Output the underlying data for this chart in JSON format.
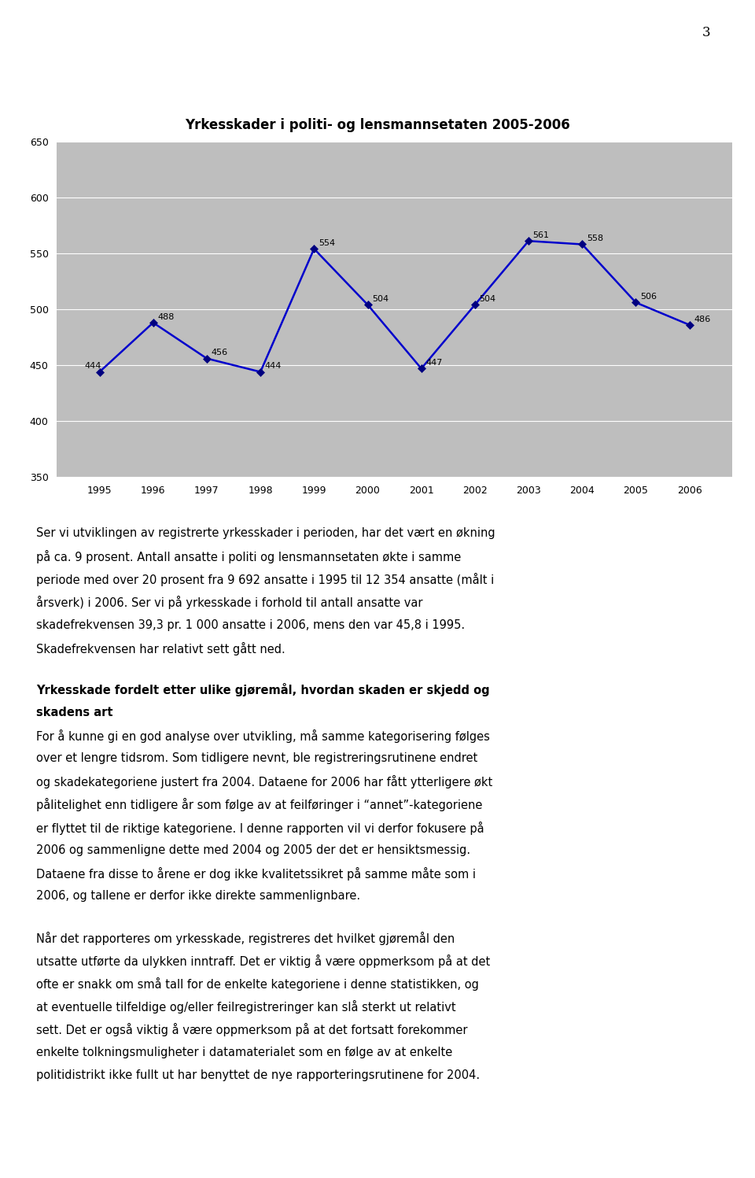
{
  "title": "Yrkesskader i politi- og lensmannsetaten 2005-2006",
  "years": [
    1995,
    1996,
    1997,
    1998,
    1999,
    2000,
    2001,
    2002,
    2003,
    2004,
    2005,
    2006
  ],
  "values": [
    444,
    488,
    456,
    444,
    554,
    504,
    447,
    504,
    561,
    558,
    506,
    486
  ],
  "ylim": [
    350,
    650
  ],
  "yticks": [
    350,
    400,
    450,
    500,
    550,
    600,
    650
  ],
  "line_color": "#0000CC",
  "marker_color": "#000080",
  "chart_bg": "#BEBEBE",
  "page_bg": "#FFFFFF",
  "page_number": "3",
  "p1_line1": "Ser vi utviklingen av registrerte yrkesskader i perioden, har det vært en økning",
  "p1_line2": "på ca. 9 prosent. Antall ansatte i politi og lensmannsetaten økte i samme",
  "p1_line3": "periode med over 20 prosent fra 9 692 ansatte i 1995 til 12 354 ansatte (målt i",
  "p1_line4": "årsverk) i 2006. Ser vi på yrkesskade i forhold til antall ansatte var",
  "p1_line5": "skadefrekvensen 39,3 pr. 1 000 ansatte i 2006, mens den var 45,8 i 1995.",
  "p1_line6": "Skadefrekvensen har relativt sett gått ned.",
  "h2_line1": "Yrkesskade fordelt etter ulike gjøremål, hvordan skaden er skjedd og",
  "h2_line2": "skadens art",
  "p2_line1": "For å kunne gi en god analyse over utvikling, må samme kategorisering følges",
  "p2_line2": "over et lengre tidsrom. Som tidligere nevnt, ble registreringsrutinene endret",
  "p2_line3": "og skadekategoriene justert fra 2004. Dataene for 2006 har fått ytterligere økt",
  "p2_line4": "pålitelighet enn tidligere år som følge av at feilføringer i “annet”-kategoriene",
  "p2_line5": "er flyttet til de riktige kategoriene. I denne rapporten vil vi derfor fokusere på",
  "p2_line6": "2006 og sammenligne dette med 2004 og 2005 der det er hensiktsmessig.",
  "p2_line7": "Dataene fra disse to årene er dog ikke kvalitetssikret på samme måte som i",
  "p2_line8": "2006, og tallene er derfor ikke direkte sammenlignbare.",
  "p3_line1": "Når det rapporteres om yrkesskade, registreres det hvilket gjøremål den",
  "p3_line2": "utsatte utførte da ulykken inntraff. Det er viktig å være oppmerksom på at det",
  "p3_line3": "ofte er snakk om små tall for de enkelte kategoriene i denne statistikken, og",
  "p3_line4": "at eventuelle tilfeldige og/eller feilregistreringer kan slå sterkt ut relativt",
  "p3_line5": "sett. Det er også viktig å være oppmerksom på at det fortsatt forekommer",
  "p3_line6": "enkelte tolkningsmuligheter i datamaterialet som en følge av at enkelte",
  "p3_line7": "politidistrikt ikke fullt ut har benyttet de nye rapporteringsrutinene for 2004."
}
